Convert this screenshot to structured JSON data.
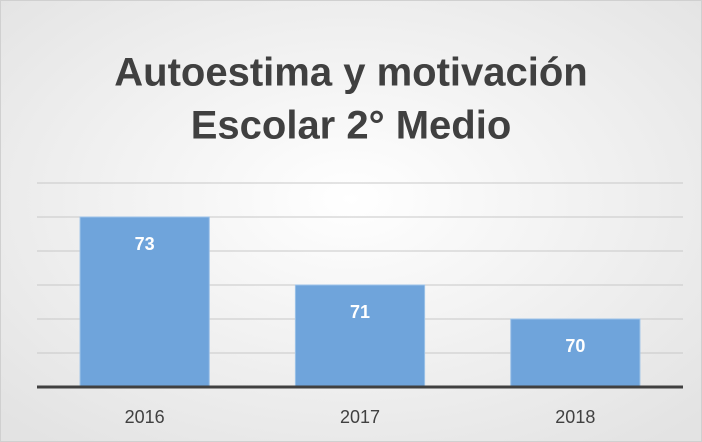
{
  "chart_data": {
    "type": "bar",
    "title": [
      "Autoestima y motivación",
      "Escolar 2° Medio"
    ],
    "categories": [
      "2016",
      "2017",
      "2018"
    ],
    "values": [
      73,
      71,
      70
    ],
    "color": "#6fa4db",
    "ylim": [
      68,
      74
    ],
    "yticks": [
      68,
      69,
      70,
      71,
      72,
      73,
      74
    ],
    "grid": true
  }
}
